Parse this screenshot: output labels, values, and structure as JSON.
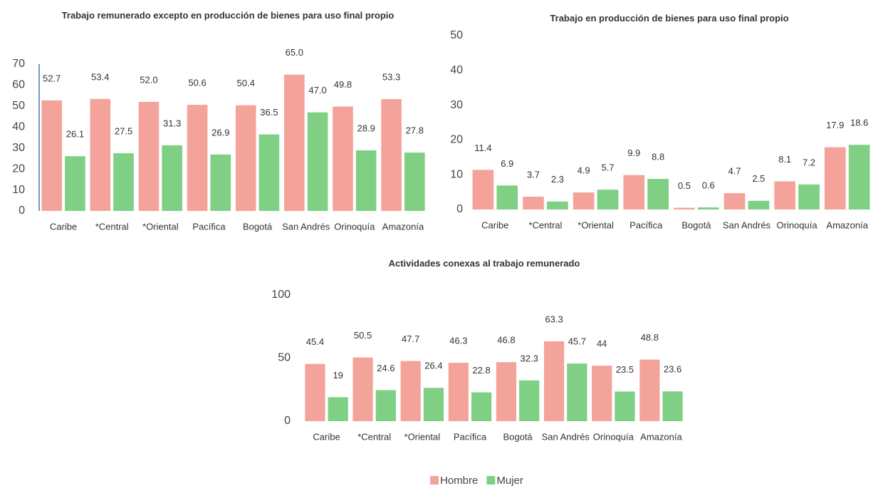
{
  "chart_data": [
    {
      "type": "bar",
      "title": "Trabajo remunerado excepto en producción de bienes para uso final propio",
      "categories": [
        "Caribe",
        "*Central",
        "*Oriental",
        "Pacífica",
        "Bogotá",
        "San Andrés",
        "Orinoquía",
        "Amazonía"
      ],
      "series": [
        {
          "name": "Hombre",
          "color": "#f4a39a",
          "values": [
            52.7,
            53.4,
            52.0,
            50.6,
            50.4,
            65.0,
            49.8,
            53.3
          ],
          "value_labels": [
            "52.7",
            "53.4",
            "52.0",
            "50.6",
            "50.4",
            "65.0",
            "49.8",
            "53.3"
          ]
        },
        {
          "name": "Mujer",
          "color": "#7fcf85",
          "values": [
            26.1,
            27.5,
            31.3,
            26.9,
            36.5,
            47.0,
            28.9,
            27.8
          ],
          "value_labels": [
            "26.1",
            "27.5",
            "31.3",
            "26.9",
            "36.5",
            "47.0",
            "28.9",
            "27.8"
          ]
        }
      ],
      "ylim": [
        0,
        70
      ],
      "yticks": [
        0,
        10,
        20,
        30,
        40,
        50,
        60,
        70
      ]
    },
    {
      "type": "bar",
      "title": "Trabajo en producción de bienes para uso final propio",
      "categories": [
        "Caribe",
        "*Central",
        "*Oriental",
        "Pacífica",
        "Bogotá",
        "San Andrés",
        "Orinoquía",
        "Amazonía"
      ],
      "series": [
        {
          "name": "Hombre",
          "color": "#f4a39a",
          "values": [
            11.4,
            3.7,
            4.9,
            9.9,
            0.5,
            4.7,
            8.1,
            17.9
          ]
        },
        {
          "name": "Mujer",
          "color": "#7fcf85",
          "values": [
            6.9,
            2.3,
            5.7,
            8.8,
            0.6,
            2.5,
            7.2,
            18.6
          ]
        }
      ],
      "ylim": [
        0,
        50
      ],
      "yticks": [
        0,
        10,
        20,
        30,
        40,
        50
      ]
    },
    {
      "type": "bar",
      "title": "Actividades conexas al trabajo remunerado",
      "categories": [
        "Caribe",
        "*Central",
        "*Oriental",
        "Pacífica",
        "Bogotá",
        "San Andrés",
        "Orinoquía",
        "Amazonía"
      ],
      "series": [
        {
          "name": "Hombre",
          "color": "#f4a39a",
          "values": [
            45.4,
            50.5,
            47.7,
            46.3,
            46.8,
            63.3,
            44.0,
            48.8
          ]
        },
        {
          "name": "Mujer",
          "color": "#7fcf85",
          "values": [
            19.0,
            24.6,
            26.4,
            22.8,
            32.3,
            45.7,
            23.5,
            23.6
          ]
        }
      ],
      "ylim": [
        0,
        100
      ],
      "yticks": [
        0,
        50,
        100
      ]
    }
  ]
}
